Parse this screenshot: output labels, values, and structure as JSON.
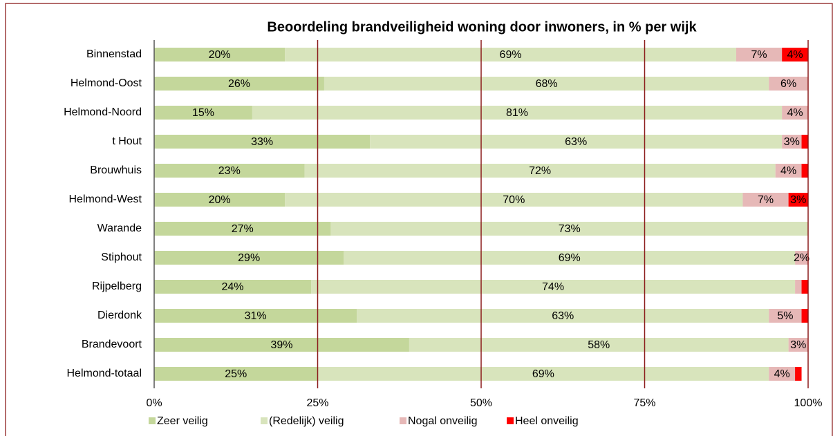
{
  "chart_data": {
    "type": "bar",
    "orientation": "horizontal",
    "stacked": true,
    "title": "Beoordeling brandveiligheid  woning door inwoners, in % per wijk",
    "categories": [
      "Binnenstad",
      "Helmond-Oost",
      "Helmond-Noord",
      "t Hout",
      "Brouwhuis",
      "Helmond-West",
      "Warande",
      "Stiphout",
      "Rijpelberg",
      "Dierdonk",
      "Brandevoort",
      "Helmond-totaal"
    ],
    "series": [
      {
        "name": "Zeer veilig",
        "color": "#c4d79b",
        "values": [
          20,
          26,
          15,
          33,
          23,
          20,
          27,
          29,
          24,
          31,
          39,
          25
        ],
        "value_labels": [
          "20%",
          "26%",
          "15%",
          "33%",
          "23%",
          "20%",
          "27%",
          "29%",
          "24%",
          "31%",
          "39%",
          "25%"
        ]
      },
      {
        "name": "(Redelijk) veilig",
        "color": "#d8e4bc",
        "values": [
          69,
          68,
          81,
          63,
          72,
          70,
          73,
          69,
          74,
          63,
          58,
          69
        ],
        "value_labels": [
          "69%",
          "68%",
          "81%",
          "63%",
          "72%",
          "70%",
          "73%",
          "69%",
          "74%",
          "63%",
          "58%",
          "69%"
        ]
      },
      {
        "name": "Nogal onveilig",
        "color": "#e6b8b7",
        "values": [
          7,
          6,
          4,
          3,
          4,
          7,
          0,
          2,
          1,
          5,
          3,
          4
        ],
        "value_labels": [
          "7%",
          "6%",
          "4%",
          "3%",
          "4%",
          "7%",
          null,
          "2%",
          null,
          "5%",
          "3%",
          "4%"
        ]
      },
      {
        "name": "Heel onveilig",
        "color": "#ff0000",
        "values": [
          4,
          0,
          0,
          1,
          1,
          3,
          0,
          0,
          1,
          1,
          0,
          1
        ],
        "value_labels": [
          "4%",
          null,
          null,
          null,
          null,
          "3%",
          null,
          null,
          null,
          null,
          null,
          null
        ]
      }
    ],
    "xlim": [
      0,
      100
    ],
    "xticks": [
      {
        "value": 0,
        "label": "0%"
      },
      {
        "value": 25,
        "label": "25%"
      },
      {
        "value": 50,
        "label": "50%"
      },
      {
        "value": 75,
        "label": "75%"
      },
      {
        "value": 100,
        "label": "100%"
      }
    ],
    "grid": true,
    "legend": "bottom"
  }
}
